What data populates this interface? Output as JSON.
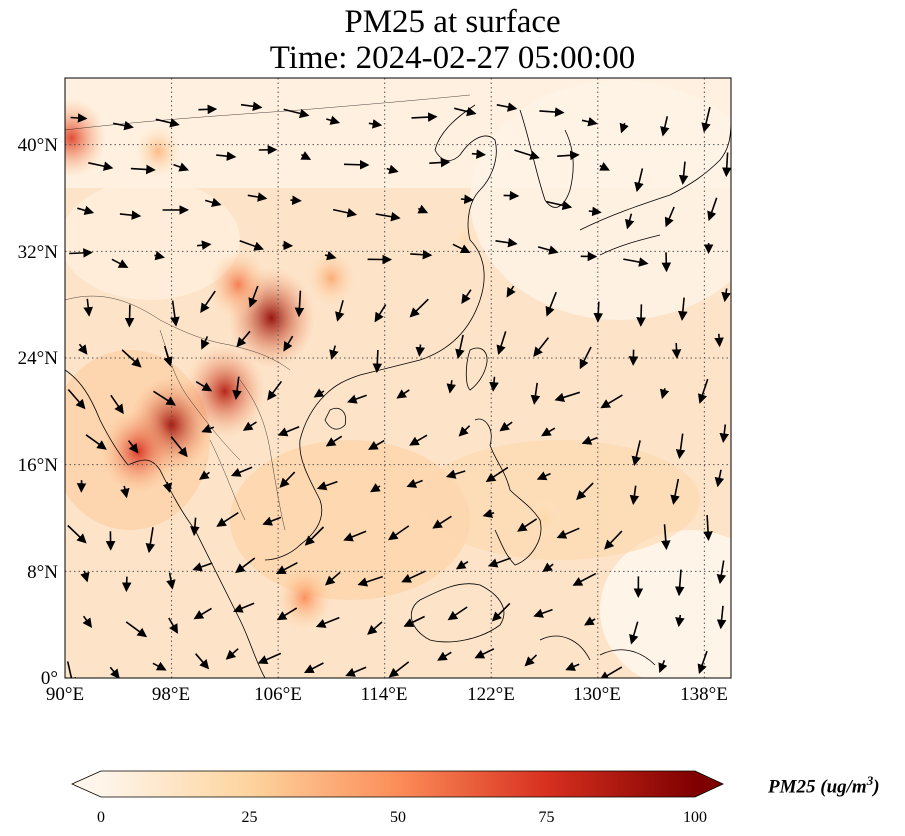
{
  "title": {
    "line1": "PM25 at surface",
    "line2": "Time: 2024-02-27 05:00:00"
  },
  "map": {
    "lon_ticks": [
      "90°E",
      "98°E",
      "106°E",
      "114°E",
      "122°E",
      "130°E",
      "138°E"
    ],
    "lat_ticks": [
      "0°",
      "8°N",
      "16°N",
      "24°N",
      "32°N",
      "40°N"
    ],
    "lon_range": [
      90,
      140
    ],
    "lat_range": [
      0,
      45
    ],
    "gridlines": "dotted",
    "wind_vectors": "shown",
    "colormap": "OrRd"
  },
  "colorbar": {
    "label_main": "PM25 (ug/m",
    "label_exp": "3",
    "label_close": ")",
    "ticks": [
      "0",
      "25",
      "50",
      "75",
      "100"
    ],
    "range": [
      0,
      100
    ],
    "extend": "both",
    "colors": [
      "#fff5eb",
      "#fdd49e",
      "#fc8d59",
      "#d7301f",
      "#7f0000"
    ]
  },
  "chart_data": {
    "type": "heatmap",
    "title": "PM25 at surface Time: 2024-02-27 05:00:00",
    "x_ticks": [
      "90°E",
      "98°E",
      "106°E",
      "114°E",
      "122°E",
      "130°E",
      "138°E"
    ],
    "y_ticks": [
      "0°",
      "8°N",
      "16°N",
      "24°N",
      "32°N",
      "40°N"
    ],
    "colorbar_label": "PM25 (ug/m3)",
    "colorbar_range": [
      0,
      100
    ],
    "hotspots": [
      {
        "lon": 105.5,
        "lat": 27,
        "value": 95
      },
      {
        "lon": 98,
        "lat": 19,
        "value": 90
      },
      {
        "lon": 102,
        "lat": 21.5,
        "value": 85
      },
      {
        "lon": 95.5,
        "lat": 17,
        "value": 75
      },
      {
        "lon": 90.5,
        "lat": 40.5,
        "value": 70
      },
      {
        "lon": 103,
        "lat": 29.5,
        "value": 55
      },
      {
        "lon": 108,
        "lat": 6,
        "value": 50
      },
      {
        "lon": 110,
        "lat": 30,
        "value": 40
      },
      {
        "lon": 97,
        "lat": 39.5,
        "value": 35
      },
      {
        "lon": 126,
        "lat": 12,
        "value": 22
      },
      {
        "lon": 120,
        "lat": 33,
        "value": 18
      }
    ]
  }
}
